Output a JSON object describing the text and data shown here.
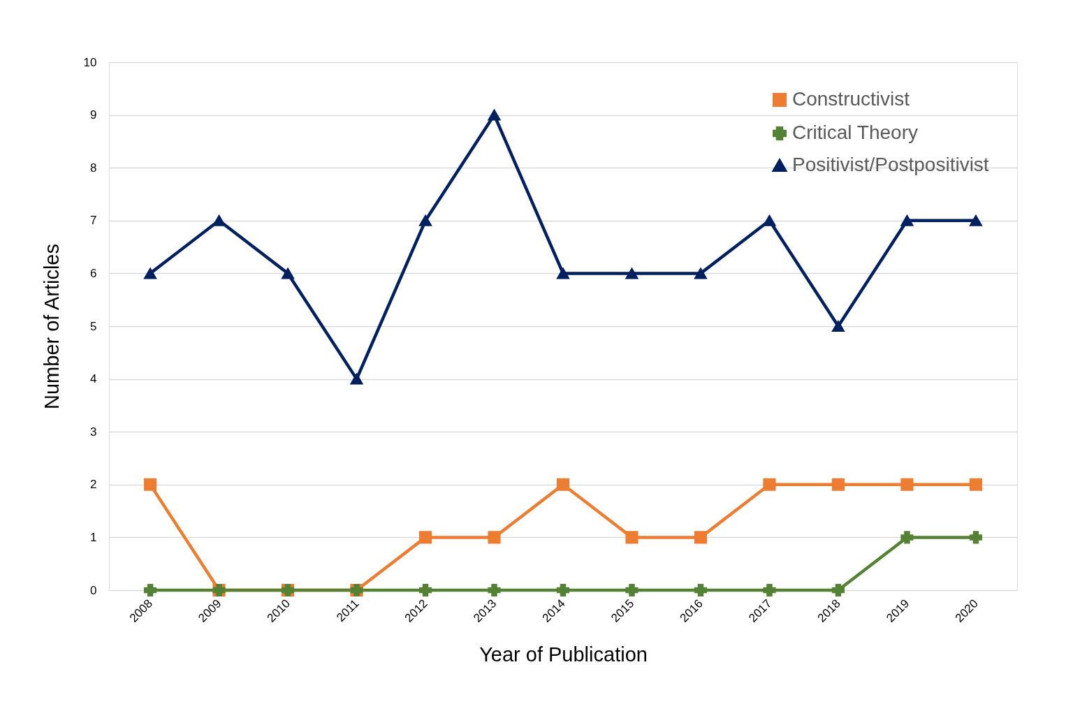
{
  "chart_data": {
    "type": "line",
    "xlabel": "Year of Publication",
    "ylabel": "Number of Articles",
    "categories": [
      "2008",
      "2009",
      "2010",
      "2011",
      "2012",
      "2013",
      "2014",
      "2015",
      "2016",
      "2017",
      "2018",
      "2019",
      "2020"
    ],
    "series": [
      {
        "name": "Constructivist",
        "color": "#ed7d31",
        "marker": "square",
        "values": [
          2,
          0,
          0,
          0,
          1,
          1,
          2,
          1,
          1,
          2,
          2,
          2,
          2
        ]
      },
      {
        "name": "Critical Theory",
        "color": "#548235",
        "marker": "cross",
        "values": [
          0,
          0,
          0,
          0,
          0,
          0,
          0,
          0,
          0,
          0,
          0,
          1,
          1
        ]
      },
      {
        "name": "Positivist/Postpositivist",
        "color": "#002060",
        "marker": "triangle",
        "values": [
          6,
          7,
          6,
          4,
          7,
          9,
          6,
          6,
          6,
          7,
          5,
          7,
          7
        ]
      }
    ],
    "ylim": [
      0,
      10
    ],
    "yticks": [
      0,
      1,
      2,
      3,
      4,
      5,
      6,
      7,
      8,
      9,
      10
    ],
    "grid": "y",
    "legend": "top right",
    "line_style": "solid"
  }
}
